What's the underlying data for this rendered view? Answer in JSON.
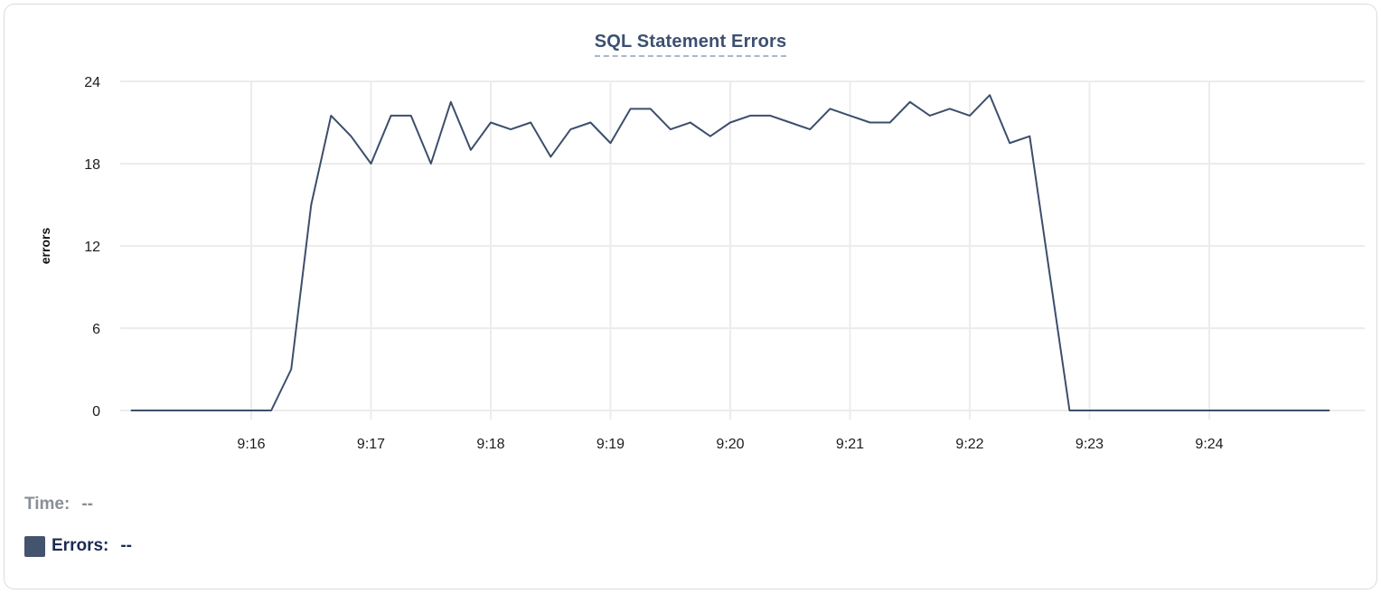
{
  "header": {
    "title": "SQL Statement Errors"
  },
  "chart_data": {
    "type": "line",
    "title": "SQL Statement Errors",
    "xlabel": "",
    "ylabel": "errors",
    "ylim": [
      0,
      24
    ],
    "y_ticks": [
      0,
      6,
      12,
      18,
      24
    ],
    "x_ticks": [
      "9:16",
      "9:17",
      "9:18",
      "9:19",
      "9:20",
      "9:21",
      "9:22",
      "9:23",
      "9:24"
    ],
    "x_range": [
      "9:15:00",
      "9:25:00"
    ],
    "grid": true,
    "legend_position": "bottom-left",
    "series": [
      {
        "name": "Errors",
        "color": "#3d4e6c",
        "x": [
          "9:15:00",
          "9:15:10",
          "9:15:20",
          "9:15:30",
          "9:15:40",
          "9:15:50",
          "9:16:00",
          "9:16:10",
          "9:16:20",
          "9:16:30",
          "9:16:40",
          "9:16:50",
          "9:17:00",
          "9:17:10",
          "9:17:20",
          "9:17:30",
          "9:17:40",
          "9:17:50",
          "9:18:00",
          "9:18:10",
          "9:18:20",
          "9:18:30",
          "9:18:40",
          "9:18:50",
          "9:19:00",
          "9:19:10",
          "9:19:20",
          "9:19:30",
          "9:19:40",
          "9:19:50",
          "9:20:00",
          "9:20:10",
          "9:20:20",
          "9:20:30",
          "9:20:40",
          "9:20:50",
          "9:21:00",
          "9:21:10",
          "9:21:20",
          "9:21:30",
          "9:21:40",
          "9:21:50",
          "9:22:00",
          "9:22:10",
          "9:22:20",
          "9:22:30",
          "9:22:40",
          "9:22:50",
          "9:23:00",
          "9:23:10",
          "9:23:20",
          "9:23:30",
          "9:23:40",
          "9:23:50",
          "9:24:00",
          "9:24:10",
          "9:24:20",
          "9:24:30",
          "9:24:40",
          "9:24:50",
          "9:25:00"
        ],
        "values": [
          0,
          0,
          0,
          0,
          0,
          0,
          0,
          0,
          3,
          15,
          21.5,
          20,
          18,
          21.5,
          21.5,
          18,
          22.5,
          19,
          21,
          20.5,
          21,
          18.5,
          20.5,
          21,
          19.5,
          22,
          22,
          20.5,
          21,
          20,
          21,
          21.5,
          21.5,
          21,
          20.5,
          22,
          21.5,
          21,
          21,
          22.5,
          21.5,
          22,
          21.5,
          23,
          19.5,
          20,
          10,
          0,
          0,
          0,
          0,
          0,
          0,
          0,
          0,
          0,
          0,
          0,
          0,
          0,
          0
        ]
      }
    ]
  },
  "legend": {
    "time_label": "Time:",
    "time_value": "--",
    "errors_label": "Errors:",
    "errors_value": "--",
    "swatch_color": "#44536e"
  },
  "colors": {
    "line": "#3d4e6c",
    "title": "#3c5070",
    "gridline": "#ececec",
    "tick_text": "#1d1d1d"
  }
}
